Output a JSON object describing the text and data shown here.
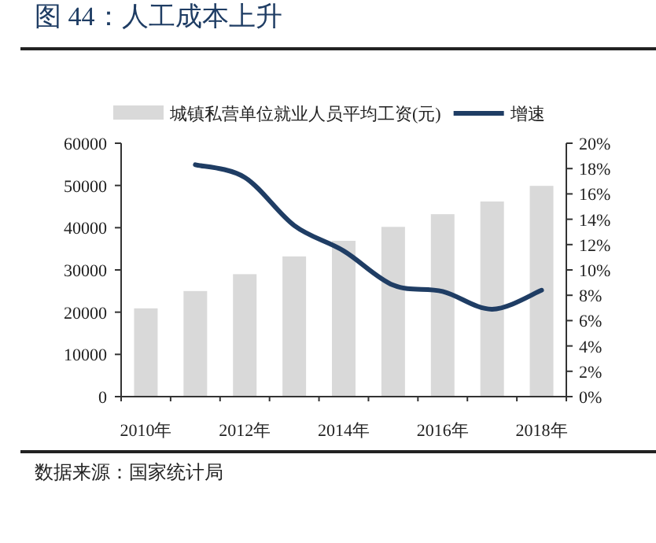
{
  "chart_data": {
    "type": "bar",
    "title": "图 44：人工成本上升",
    "categories": [
      "2010年",
      null,
      "2012年",
      null,
      "2014年",
      null,
      "2016年",
      null,
      "2018年"
    ],
    "series": [
      {
        "name": "城镇私营单位就业人员平均工资(元)",
        "color": "#d9d9d9",
        "values": [
          20900,
          25000,
          29000,
          33200,
          36900,
          40200,
          43200,
          46200,
          49900
        ]
      },
      {
        "name": "增速",
        "type": "line",
        "axis": "y2",
        "color": "#1f3d64",
        "values": [
          null,
          18.3,
          17.3,
          13.5,
          11.5,
          8.8,
          8.3,
          6.9,
          8.4
        ]
      }
    ],
    "ylim": [
      0,
      60000
    ],
    "yticks": [
      0,
      10000,
      20000,
      30000,
      40000,
      50000,
      60000
    ],
    "y2lim": [
      0,
      20
    ],
    "y2ticks": [
      {
        "value": 0,
        "label": "0%"
      },
      {
        "value": 2,
        "label": "2%"
      },
      {
        "value": 4,
        "label": "4%"
      },
      {
        "value": 6,
        "label": "6%"
      },
      {
        "value": 8,
        "label": "8%"
      },
      {
        "value": 10,
        "label": "10%"
      },
      {
        "value": 12,
        "label": "12%"
      },
      {
        "value": 14,
        "label": "14%"
      },
      {
        "value": 16,
        "label": "16%"
      },
      {
        "value": 18,
        "label": "18%"
      },
      {
        "value": 20,
        "label": "20%"
      }
    ],
    "legend": "top",
    "grid": false,
    "annotations": [
      "数据来源：国家统计局"
    ]
  }
}
